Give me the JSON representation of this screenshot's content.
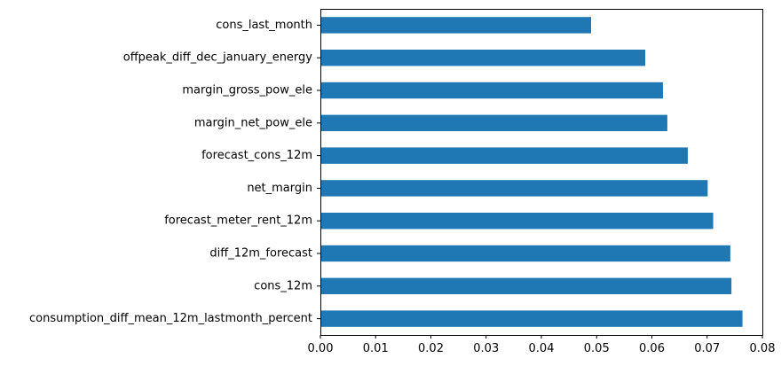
{
  "chart_data": {
    "type": "bar",
    "orientation": "horizontal",
    "title": "",
    "xlabel": "",
    "ylabel": "",
    "categories": [
      "cons_last_month",
      "offpeak_diff_dec_january_energy",
      "margin_gross_pow_ele",
      "margin_net_pow_ele",
      "forecast_cons_12m",
      "net_margin",
      "forecast_meter_rent_12m",
      "diff_12m_forecast",
      "cons_12m",
      "consumption_diff_mean_12m_lastmonth_percent"
    ],
    "values": [
      0.049,
      0.0588,
      0.062,
      0.0628,
      0.0665,
      0.0701,
      0.0711,
      0.0742,
      0.0744,
      0.0764
    ],
    "xlim": [
      0.0,
      0.08
    ],
    "xticks": [
      "0.00",
      "0.01",
      "0.02",
      "0.03",
      "0.04",
      "0.05",
      "0.06",
      "0.07",
      "0.08"
    ],
    "bar_color": "#1f77b4",
    "grid": false,
    "legend": "none"
  }
}
